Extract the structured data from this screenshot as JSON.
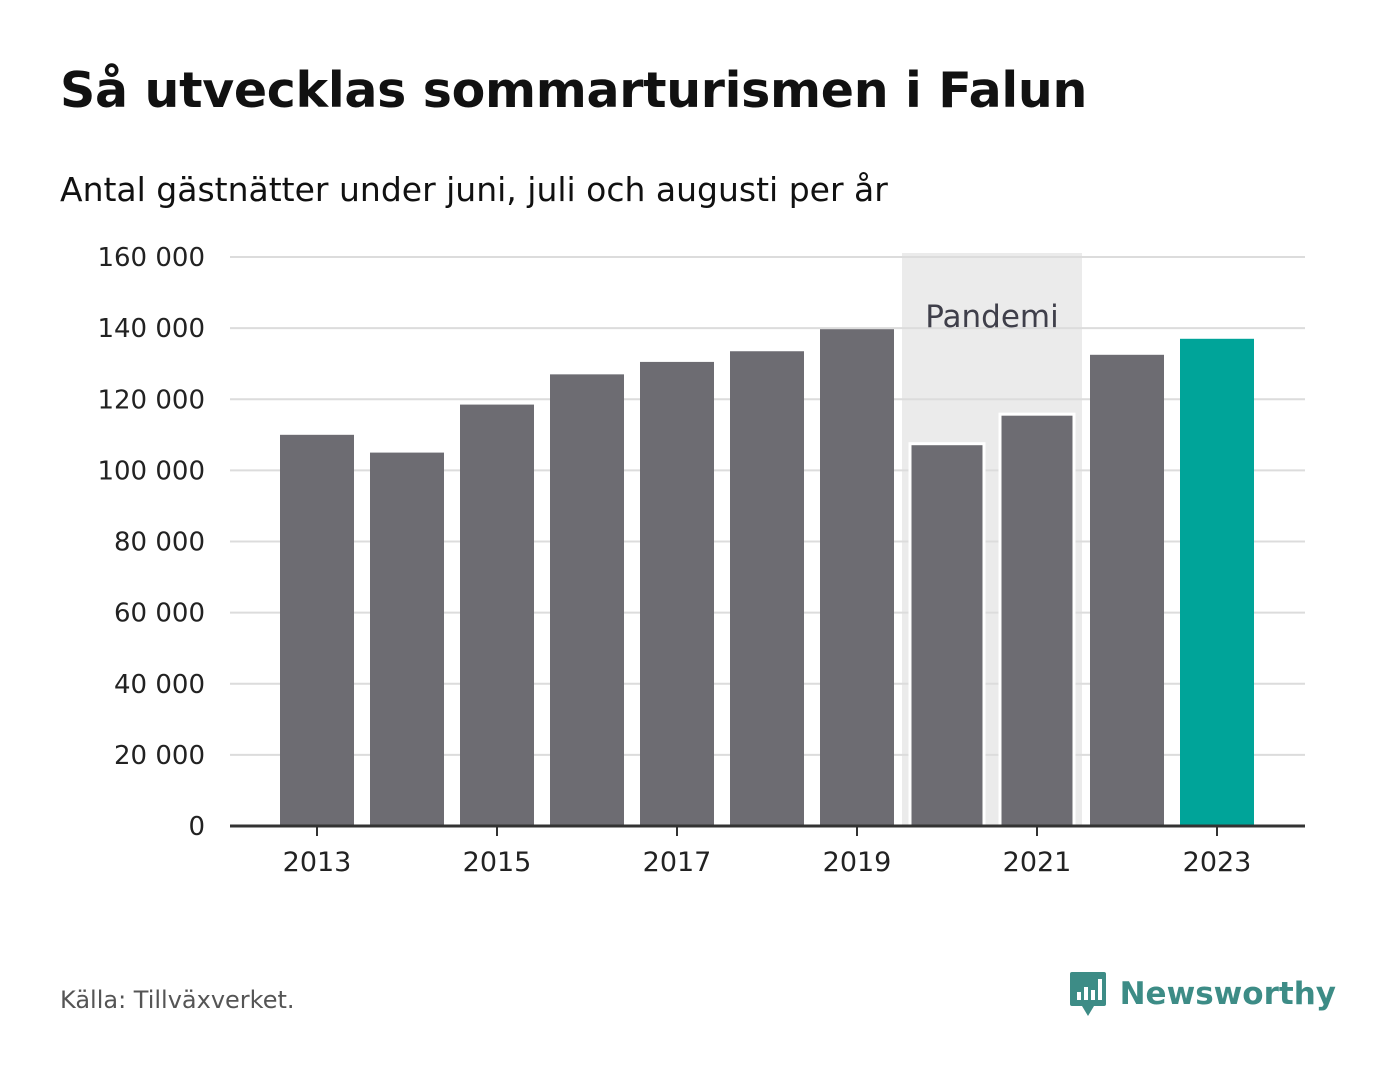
{
  "title": "Så utvecklas sommarturismen i Falun",
  "subtitle": "Antal gästnätter under juni, juli och augusti per år",
  "source": "Källa: Tillväxverket.",
  "brand": {
    "name": "Newsworthy",
    "icon": "newsworthy-logo-icon",
    "color": "#3d8c86"
  },
  "colors": {
    "bar": "#6d6c72",
    "highlight": "#00a499",
    "band": "#ebebeb",
    "grid": "#dcdcdc",
    "axis": "#333333"
  },
  "chart_data": {
    "type": "bar",
    "title": "Så utvecklas sommarturismen i Falun",
    "subtitle": "Antal gästnätter under juni, juli och augusti per år",
    "xlabel": "",
    "ylabel": "",
    "categories": [
      "2013",
      "2014",
      "2015",
      "2016",
      "2017",
      "2018",
      "2019",
      "2020",
      "2021",
      "2022",
      "2023"
    ],
    "values": [
      110000,
      105000,
      118500,
      127000,
      130500,
      133500,
      139700,
      107500,
      115800,
      132500,
      137000
    ],
    "highlight_category": "2023",
    "ylim": [
      0,
      160000
    ],
    "yticks": [
      0,
      20000,
      40000,
      60000,
      80000,
      100000,
      120000,
      140000,
      160000
    ],
    "ytick_labels": [
      "0",
      "20 000",
      "40 000",
      "60 000",
      "80 000",
      "100 000",
      "120 000",
      "140 000",
      "160 000"
    ],
    "xtick_labels": [
      "2013",
      "2015",
      "2017",
      "2019",
      "2021",
      "2023"
    ],
    "grid": true,
    "annotation": {
      "label": "Pandemi",
      "from": "2020",
      "to": "2021"
    }
  }
}
